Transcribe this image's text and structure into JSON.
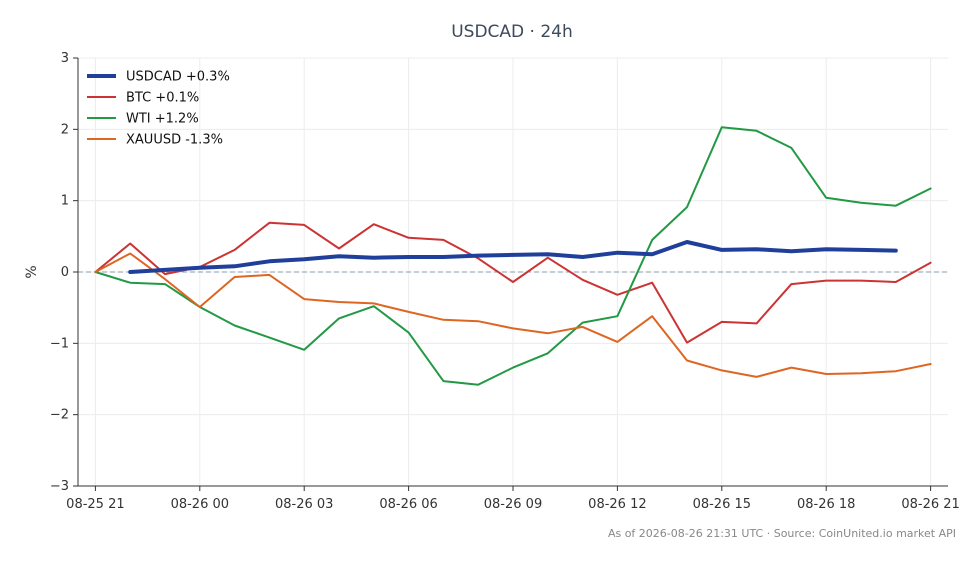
{
  "chart_data": {
    "type": "line",
    "title": "USDCAD · 24h",
    "ylabel": "%",
    "xlabel": "",
    "ylim": [
      -3,
      3
    ],
    "xlim": [
      -0.5,
      24.5
    ],
    "yticks": [
      -3,
      -2,
      -1,
      0,
      1,
      2,
      3
    ],
    "ytick_labels": [
      "−3",
      "−2",
      "−1",
      "0",
      "1",
      "2",
      "3"
    ],
    "xticks": [
      0,
      3,
      6,
      9,
      12,
      15,
      18,
      21,
      24
    ],
    "xtick_labels": [
      "08-25 21",
      "08-26 00",
      "08-26 03",
      "08-26 06",
      "08-26 09",
      "08-26 12",
      "08-26 15",
      "08-26 18",
      "08-26 21"
    ],
    "grid": true,
    "zero_line": true,
    "legend_position": "top-left",
    "series": [
      {
        "name": "USDCAD +0.3%",
        "color": "#1f3f9a",
        "width": 4,
        "x": [
          1,
          2,
          3,
          4,
          5,
          6,
          7,
          8,
          9,
          10,
          11,
          12,
          13,
          14,
          15,
          16,
          17,
          18,
          19,
          20,
          21,
          22,
          23
        ],
        "values": [
          0.0,
          0.03,
          0.06,
          0.08,
          0.15,
          0.18,
          0.22,
          0.2,
          0.21,
          0.21,
          0.23,
          0.24,
          0.25,
          0.21,
          0.27,
          0.25,
          0.42,
          0.31,
          0.32,
          0.29,
          0.32,
          0.31,
          0.3
        ]
      },
      {
        "name": "BTC +0.1%",
        "color": "#cc3333",
        "width": 2,
        "x": [
          0,
          1,
          2,
          3,
          4,
          5,
          6,
          7,
          8,
          9,
          10,
          11,
          12,
          13,
          14,
          15,
          16,
          17,
          18,
          19,
          20,
          21,
          22,
          23,
          24
        ],
        "values": [
          0.0,
          0.4,
          -0.03,
          0.07,
          0.31,
          0.69,
          0.66,
          0.33,
          0.67,
          0.48,
          0.45,
          0.19,
          -0.14,
          0.2,
          -0.11,
          -0.32,
          -0.15,
          -0.99,
          -0.7,
          -0.72,
          -0.17,
          -0.12,
          -0.12,
          -0.14,
          0.13
        ]
      },
      {
        "name": "WTI +1.2%",
        "color": "#229944",
        "width": 2,
        "x": [
          0,
          1,
          2,
          3,
          4,
          5,
          6,
          7,
          8,
          9,
          10,
          11,
          12,
          13,
          14,
          15,
          16,
          17,
          18,
          19,
          20,
          21,
          22,
          23,
          24
        ],
        "values": [
          0.0,
          -0.15,
          -0.17,
          -0.49,
          -0.75,
          -0.92,
          -1.09,
          -0.65,
          -0.48,
          -0.85,
          -1.53,
          -1.58,
          -1.34,
          -1.14,
          -0.71,
          -0.62,
          0.45,
          0.91,
          2.03,
          1.98,
          1.74,
          1.04,
          0.97,
          0.93,
          1.17
        ]
      },
      {
        "name": "XAUUSD -1.3%",
        "color": "#dd6622",
        "width": 2,
        "x": [
          0,
          1,
          2,
          3,
          4,
          5,
          6,
          7,
          8,
          9,
          10,
          11,
          12,
          13,
          14,
          15,
          16,
          17,
          18,
          19,
          20,
          21,
          22,
          23,
          24
        ],
        "values": [
          0.0,
          0.26,
          -0.1,
          -0.49,
          -0.07,
          -0.04,
          -0.38,
          -0.42,
          -0.44,
          -0.56,
          -0.67,
          -0.69,
          -0.79,
          -0.86,
          -0.77,
          -0.98,
          -0.62,
          -1.24,
          -1.38,
          -1.47,
          -1.34,
          -1.43,
          -1.42,
          -1.39,
          -1.29
        ]
      }
    ]
  },
  "footer": "As of 2026-08-26 21:31 UTC · Source: CoinUnited.io market API"
}
